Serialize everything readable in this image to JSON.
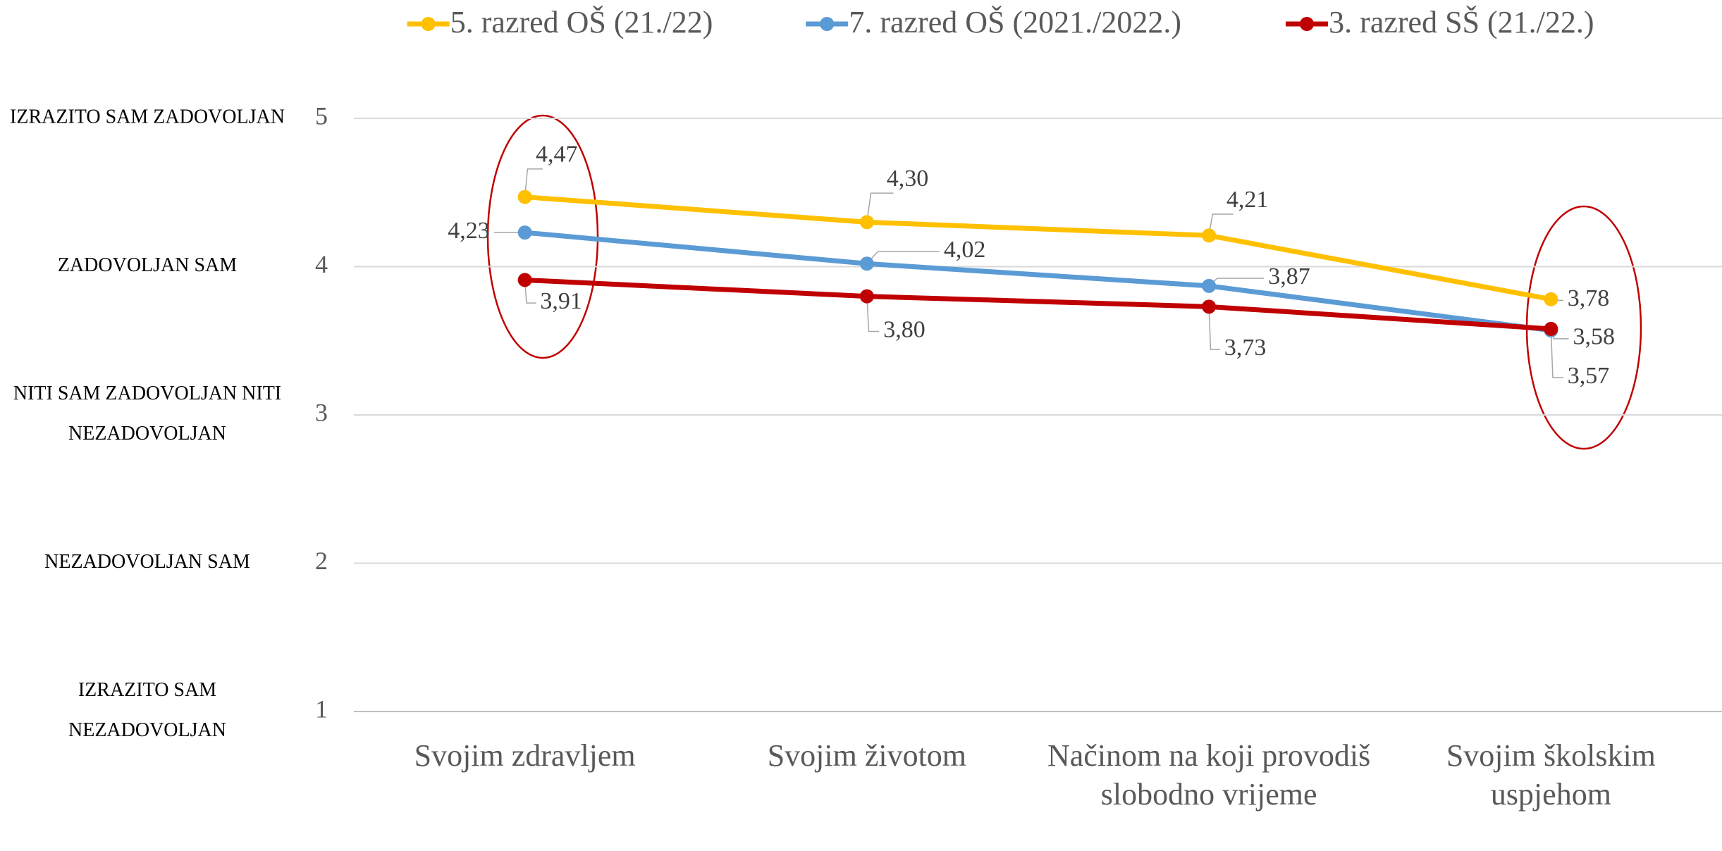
{
  "chart_data": {
    "type": "line",
    "categories": [
      "Svojim zdravljem",
      "Svojim životom",
      "Načinom na koji provodiš slobodno vrijeme",
      "Svojim školskim uspjehom"
    ],
    "series": [
      {
        "name": "5. razred OŠ (21./22)",
        "color": "#FFC000",
        "values": [
          4.47,
          4.3,
          4.21,
          3.78
        ],
        "value_labels": [
          "4,47",
          "4,30",
          "4,21",
          "3,78"
        ]
      },
      {
        "name": "7. razred OŠ (2021./2022.)",
        "color": "#5B9BD5",
        "values": [
          4.23,
          4.02,
          3.87,
          3.57
        ],
        "value_labels": [
          "4,23",
          "4,02",
          "3,87",
          "3,57"
        ]
      },
      {
        "name": "3. razred SŠ (21./22.)",
        "color": "#C00000",
        "values": [
          3.91,
          3.8,
          3.73,
          3.58
        ],
        "value_labels": [
          "3,91",
          "3,80",
          "3,73",
          "3,58"
        ]
      }
    ],
    "ylim": [
      1,
      5
    ],
    "yticks": [
      1,
      2,
      3,
      4,
      5
    ],
    "grid": true,
    "scale_labels": [
      [
        "IZRAZITO SAM",
        "NEZADOVOLJAN"
      ],
      [
        "NEZADOVOLJAN SAM"
      ],
      [
        "NITI SAM ZADOVOLJAN NITI",
        "NEZADOVOLJAN"
      ],
      [
        "ZADOVOLJAN SAM"
      ],
      [
        "IZRAZITO SAM ZADOVOLJAN"
      ]
    ]
  }
}
